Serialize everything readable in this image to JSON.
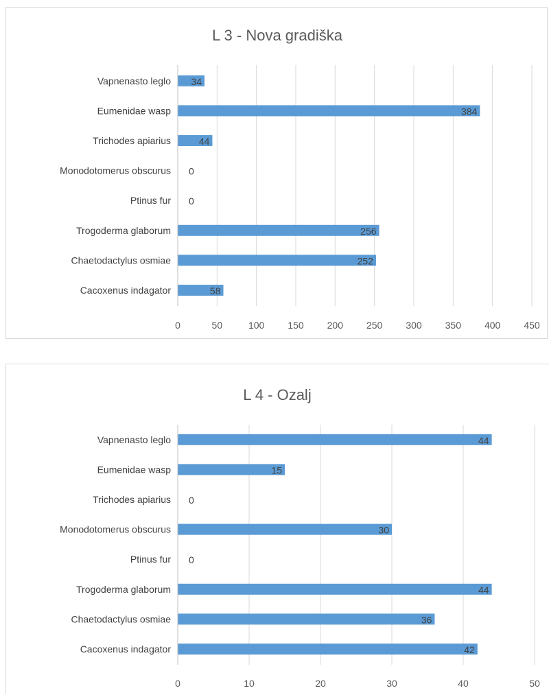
{
  "chart_data": [
    {
      "type": "bar",
      "orientation": "horizontal",
      "title": "L 3 - Nova gradiška",
      "categories": [
        "Vapnenasto leglo",
        "Eumenidae wasp",
        "Trichodes apiarius",
        "Monodotomerus obscurus",
        "Ptinus fur",
        "Trogoderma glaborum",
        "Chaetodactylus osmiae",
        "Cacoxenus indagator"
      ],
      "values": [
        34,
        384,
        44,
        0,
        0,
        256,
        252,
        58
      ],
      "xlim": [
        0,
        450
      ],
      "ticks": [
        "0",
        "50",
        "100",
        "150",
        "200",
        "250",
        "300",
        "350",
        "400",
        "450"
      ],
      "grid": true,
      "bar_color": "#5b9bd5",
      "xlabel": "",
      "ylabel": ""
    },
    {
      "type": "bar",
      "orientation": "horizontal",
      "title": "L 4 - Ozalj",
      "categories": [
        "Vapnenasto leglo",
        "Eumenidae wasp",
        "Trichodes apiarius",
        "Monodotomerus obscurus",
        "Ptinus fur",
        "Trogoderma glaborum",
        "Chaetodactylus osmiae",
        "Cacoxenus indagator"
      ],
      "values": [
        44,
        15,
        0,
        30,
        0,
        44,
        36,
        42
      ],
      "xlim": [
        0,
        50
      ],
      "ticks": [
        "0",
        "10",
        "20",
        "30",
        "40",
        "50"
      ],
      "grid": true,
      "bar_color": "#5b9bd5",
      "xlabel": "",
      "ylabel": ""
    }
  ]
}
